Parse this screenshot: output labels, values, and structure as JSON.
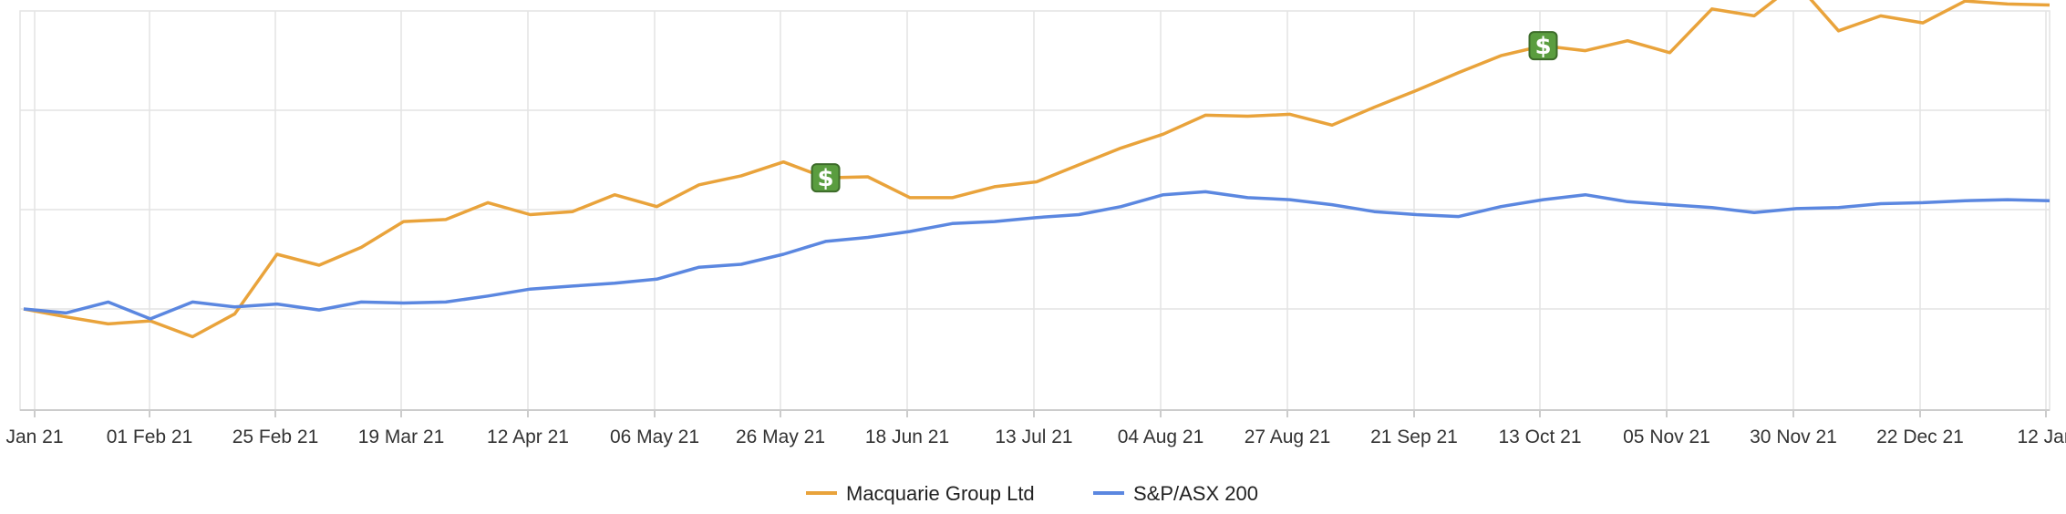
{
  "chart_data": {
    "type": "line",
    "x_ticks": [
      "Jan 21",
      "01 Feb 21",
      "25 Feb 21",
      "19 Mar 21",
      "12 Apr 21",
      "06 May 21",
      "26 May 21",
      "18 Jun 21",
      "13 Jul 21",
      "04 Aug 21",
      "27 Aug 21",
      "21 Sep 21",
      "13 Oct 21",
      "05 Nov 21",
      "30 Nov 21",
      "22 Dec 21",
      "12 Jan"
    ],
    "ylim": [
      0,
      4
    ],
    "grid": true,
    "legend_position": "bottom-center",
    "series": [
      {
        "name": "Macquarie Group Ltd",
        "color": "#e9a33b",
        "values": [
          1.0,
          0.92,
          0.85,
          0.88,
          0.72,
          0.95,
          1.55,
          1.44,
          1.62,
          1.88,
          1.9,
          2.07,
          1.95,
          1.98,
          2.15,
          2.03,
          2.25,
          2.34,
          2.48,
          2.32,
          2.33,
          2.12,
          2.12,
          2.23,
          2.28,
          2.45,
          2.62,
          2.76,
          2.95,
          2.94,
          2.96,
          2.85,
          3.03,
          3.2,
          3.38,
          3.55,
          3.65,
          3.6,
          3.7,
          3.58,
          4.02,
          3.95,
          4.28,
          3.8,
          3.95,
          3.88,
          4.1,
          4.07,
          4.06
        ]
      },
      {
        "name": "S&P/ASX 200",
        "color": "#5b87e0",
        "values": [
          1.0,
          0.96,
          1.07,
          0.9,
          1.07,
          1.02,
          1.05,
          0.99,
          1.07,
          1.06,
          1.07,
          1.13,
          1.2,
          1.23,
          1.26,
          1.3,
          1.42,
          1.45,
          1.55,
          1.68,
          1.72,
          1.78,
          1.86,
          1.88,
          1.92,
          1.95,
          2.03,
          2.15,
          2.18,
          2.12,
          2.1,
          2.05,
          1.98,
          1.95,
          1.93,
          2.03,
          2.1,
          2.15,
          2.08,
          2.05,
          2.02,
          1.97,
          2.01,
          2.02,
          2.06,
          2.07,
          2.09,
          2.1,
          2.09
        ]
      }
    ],
    "annotations": [
      {
        "label": "$",
        "series": "Macquarie Group Ltd",
        "x_position": "approx. 13 May 21"
      },
      {
        "label": "$",
        "series": "Macquarie Group Ltd",
        "x_position": "approx. 05 Nov 21"
      }
    ]
  },
  "style": {
    "grid_color": "#e3e3e3",
    "axis_color": "#cccccc",
    "marker_color": "#5a9d3f"
  }
}
